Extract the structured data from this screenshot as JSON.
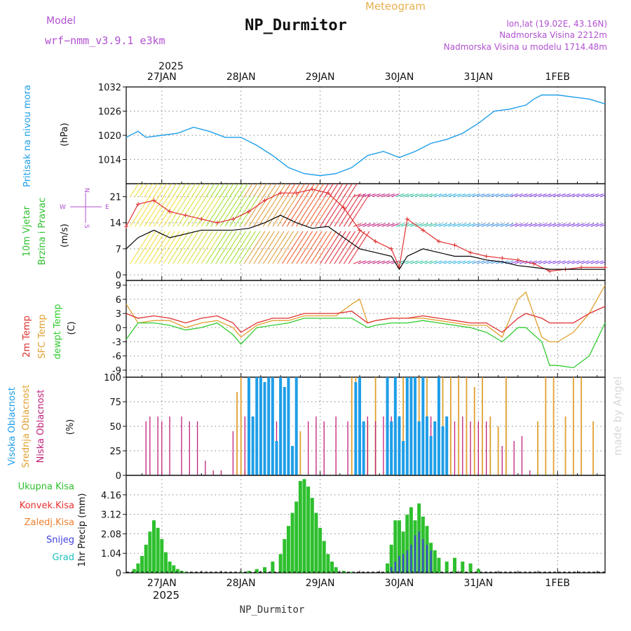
{
  "header": {
    "model_label": "Model",
    "model_name": "wrf−nmm_v3.9.1  e3km",
    "title": "NP_Durmitor",
    "subtitle": "Meteogram",
    "coords": "lon,lat (19.02E, 43.16N)",
    "altitude": "Nadmorska Visina 2212m",
    "model_altitude": "Nadmorska Visina u modelu 1714.48m",
    "footer_station": "NP_Durmitor",
    "watermark": "made by Angel"
  },
  "colors": {
    "pressure": "#1e9ee8",
    "temp2m": "#e03030",
    "sfc": "#e0a030",
    "dewpt": "#30cc30",
    "high_cloud": "#1e9ee8",
    "mid_cloud": "#e0a030",
    "low_cloud": "#c0207a",
    "precip_total": "#2ec02e",
    "convective": "#e83030",
    "freezing": "#f08030",
    "snow": "#4040e0",
    "hail": "#20c0c0",
    "grid": "#9a9a9a",
    "header_purple": "#b050d0",
    "subtitle_color": "#e8b050"
  },
  "time_axis": {
    "year": "2025",
    "day_labels": [
      "27JAN",
      "28JAN",
      "29JAN",
      "30JAN",
      "31JAN",
      "1FEB"
    ],
    "start_day": 26.55,
    "end_day": 32.6,
    "day_ticks": [
      27,
      28,
      29,
      30,
      31,
      32
    ]
  },
  "chart_data": [
    {
      "type": "line",
      "name": "pressure",
      "ylabel": "Pritisak na nivou mora",
      "units": "(hPa)",
      "ylim": [
        1008,
        1032
      ],
      "yticks": [
        1014,
        1020,
        1026,
        1032
      ],
      "series": [
        {
          "name": "MSLP",
          "x": [
            26.55,
            26.7,
            26.8,
            27.0,
            27.2,
            27.4,
            27.6,
            27.8,
            28.0,
            28.2,
            28.4,
            28.6,
            28.8,
            29.0,
            29.2,
            29.4,
            29.6,
            29.8,
            30.0,
            30.2,
            30.4,
            30.6,
            30.8,
            31.0,
            31.2,
            31.4,
            31.6,
            31.7,
            31.8,
            32.0,
            32.2,
            32.4,
            32.6
          ],
          "values": [
            1019.5,
            1021,
            1019.5,
            1020,
            1020.5,
            1022,
            1021,
            1019.5,
            1019.5,
            1017.5,
            1015,
            1012,
            1010.5,
            1010,
            1010.5,
            1012,
            1015,
            1016,
            1014.5,
            1016,
            1018,
            1019,
            1020.5,
            1023,
            1026,
            1026.5,
            1027.5,
            1029,
            1030,
            1030,
            1029.5,
            1029,
            1027.8
          ]
        }
      ]
    },
    {
      "type": "line",
      "name": "wind",
      "ylabel": "10m Vjetar Brzina i Pravac",
      "units": "(m/s)",
      "ylim": [
        -1.5,
        24.5
      ],
      "yticks": [
        0,
        7,
        14,
        21
      ],
      "legend_dirs": [
        "N",
        "W",
        "E",
        "S"
      ],
      "series": [
        {
          "name": "speed",
          "x": [
            26.55,
            26.7,
            26.9,
            27.1,
            27.3,
            27.5,
            27.7,
            27.9,
            28.1,
            28.3,
            28.5,
            28.7,
            28.9,
            29.1,
            29.3,
            29.5,
            29.7,
            29.9,
            30.0,
            30.1,
            30.3,
            30.5,
            30.7,
            30.9,
            31.1,
            31.3,
            31.5,
            31.7,
            31.9,
            32.1,
            32.3,
            32.6
          ],
          "values": [
            7,
            10,
            12,
            10,
            11,
            12,
            12,
            12,
            12.5,
            14,
            16,
            14,
            12.5,
            13,
            10,
            7,
            6,
            5,
            1.5,
            5,
            7,
            6,
            5,
            5,
            4,
            3.5,
            2.5,
            2,
            1.5,
            1.5,
            1.5,
            1.5
          ]
        },
        {
          "name": "gust",
          "x": [
            26.55,
            26.7,
            26.9,
            27.1,
            27.3,
            27.5,
            27.7,
            27.9,
            28.1,
            28.3,
            28.5,
            28.7,
            28.9,
            29.1,
            29.3,
            29.5,
            29.7,
            29.9,
            30.0,
            30.1,
            30.3,
            30.5,
            30.7,
            30.9,
            31.1,
            31.3,
            31.5,
            31.7,
            31.9,
            32.1,
            32.3,
            32.6
          ],
          "values": [
            13,
            19,
            20,
            17,
            16,
            15,
            14,
            15,
            17,
            20,
            22,
            22,
            23,
            22,
            18,
            12,
            9,
            7,
            2,
            15,
            12,
            9,
            8,
            6,
            5,
            4.5,
            4,
            3,
            1,
            1.5,
            2,
            2
          ]
        }
      ]
    },
    {
      "type": "line",
      "name": "temperature",
      "ylabel": "2m Temp / SFC Temp / dewpt Temp",
      "units": "(C)",
      "ylim": [
        -10.5,
        10
      ],
      "yticks": [
        -9,
        -6,
        -3,
        0,
        3,
        6,
        9
      ],
      "series": [
        {
          "name": "2m Temp",
          "x": [
            26.55,
            26.7,
            26.9,
            27.1,
            27.3,
            27.5,
            27.7,
            27.9,
            28.0,
            28.2,
            28.4,
            28.6,
            28.8,
            29.0,
            29.2,
            29.4,
            29.6,
            29.7,
            29.9,
            30.1,
            30.3,
            30.5,
            30.7,
            30.9,
            31.1,
            31.3,
            31.5,
            31.6,
            31.8,
            31.9,
            32.0,
            32.2,
            32.4,
            32.6
          ],
          "values": [
            3,
            2,
            2.5,
            2,
            1,
            2,
            2.5,
            1,
            -1,
            1,
            2,
            2,
            3,
            3,
            3,
            3.5,
            1,
            1.5,
            2,
            2,
            2.5,
            2,
            1.5,
            1,
            1,
            -1,
            2,
            3,
            2,
            1,
            1,
            1,
            3,
            4.5
          ]
        },
        {
          "name": "SFC Temp",
          "x": [
            26.55,
            26.7,
            26.9,
            27.1,
            27.3,
            27.5,
            27.7,
            27.9,
            28.0,
            28.2,
            28.4,
            28.6,
            28.8,
            29.0,
            29.2,
            29.4,
            29.5,
            29.6,
            29.7,
            29.9,
            30.1,
            30.3,
            30.5,
            30.7,
            30.9,
            31.1,
            31.3,
            31.5,
            31.6,
            31.8,
            31.9,
            32.0,
            32.2,
            32.4,
            32.6
          ],
          "values": [
            5,
            1,
            1.5,
            1.5,
            0,
            1,
            1.5,
            0,
            -2,
            0.5,
            1.5,
            1.5,
            2.5,
            2.5,
            2.5,
            5,
            6,
            1,
            1.5,
            2,
            2,
            2,
            1.5,
            1,
            0.5,
            0.5,
            -2,
            6,
            7.5,
            -2,
            -3,
            -3,
            -1,
            3,
            9
          ]
        },
        {
          "name": "dewpt Temp",
          "x": [
            26.55,
            26.7,
            26.9,
            27.1,
            27.3,
            27.5,
            27.7,
            27.9,
            28.0,
            28.2,
            28.4,
            28.6,
            28.8,
            29.0,
            29.2,
            29.4,
            29.6,
            29.7,
            29.9,
            30.1,
            30.3,
            30.5,
            30.7,
            30.9,
            31.1,
            31.3,
            31.5,
            31.6,
            31.8,
            31.9,
            32.0,
            32.2,
            32.4,
            32.6
          ],
          "values": [
            -2.5,
            1,
            1,
            0.5,
            -0.5,
            0,
            1,
            -1.5,
            -3.5,
            0,
            0.5,
            1,
            2,
            2,
            2,
            2,
            0,
            0.5,
            1,
            1,
            1.5,
            1,
            0.5,
            0,
            -1,
            -3,
            0,
            0,
            -3,
            -8,
            -8,
            -8.5,
            -6,
            1
          ]
        }
      ]
    },
    {
      "type": "bar",
      "name": "cloud cover",
      "ylabel": "Visoka / Srednja / Niska Oblacnost",
      "units": "(%)",
      "ylim": [
        0,
        100
      ],
      "yticks": [
        0,
        25,
        50,
        75,
        100
      ],
      "series": [
        {
          "name": "Niska Oblacnost",
          "x": [
            26.8,
            26.85,
            26.95,
            27.0,
            27.1,
            27.25,
            27.35,
            27.45,
            27.55,
            27.65,
            27.75,
            27.9,
            28.05,
            28.15,
            28.25,
            28.35,
            28.45,
            28.55,
            28.7,
            28.85,
            28.95,
            29.05,
            29.2,
            29.35,
            29.6,
            29.7,
            29.8,
            29.9,
            30.0,
            30.1,
            30.2,
            30.3,
            30.4,
            30.5,
            30.6,
            30.7,
            30.8,
            30.9,
            31.0,
            31.1,
            31.3,
            31.45,
            31.55,
            31.65
          ],
          "values": [
            55,
            60,
            60,
            55,
            60,
            60,
            55,
            55,
            15,
            5,
            5,
            45,
            60,
            55,
            50,
            60,
            55,
            55,
            60,
            55,
            60,
            55,
            60,
            55,
            60,
            55,
            60,
            60,
            60,
            55,
            55,
            55,
            60,
            55,
            60,
            55,
            60,
            55,
            55,
            55,
            30,
            35,
            40,
            5
          ]
        },
        {
          "name": "Srednja Oblacnost",
          "x": [
            27.95,
            28.0,
            28.05,
            28.1,
            28.2,
            28.35,
            28.5,
            28.6,
            28.75,
            29.4,
            29.45,
            29.5,
            29.6,
            29.7,
            29.85,
            29.95,
            30.05,
            30.15,
            30.25,
            30.35,
            30.45,
            30.55,
            30.65,
            30.75,
            30.85,
            30.95,
            31.05,
            31.15,
            31.25,
            31.35,
            31.75,
            31.85,
            31.95,
            32.1,
            32.2,
            32.3,
            32.45
          ],
          "values": [
            85,
            100,
            5,
            100,
            100,
            100,
            100,
            55,
            45,
            100,
            100,
            100,
            55,
            100,
            100,
            100,
            100,
            100,
            100,
            100,
            55,
            100,
            100,
            100,
            100,
            90,
            100,
            60,
            50,
            100,
            55,
            100,
            100,
            60,
            100,
            100,
            55
          ]
        },
        {
          "name": "Visoka Oblacnost",
          "x": [
            28.1,
            28.15,
            28.2,
            28.25,
            28.3,
            28.35,
            28.4,
            28.45,
            28.5,
            28.55,
            28.6,
            28.65,
            28.7,
            29.45,
            29.5,
            29.55,
            29.85,
            29.9,
            29.95,
            30.0,
            30.05,
            30.1,
            30.15,
            30.2,
            30.25,
            30.3,
            30.35,
            30.4,
            30.45,
            30.5,
            30.55,
            30.6
          ],
          "values": [
            100,
            60,
            100,
            100,
            95,
            100,
            100,
            35,
            100,
            90,
            100,
            30,
            100,
            95,
            100,
            55,
            100,
            55,
            100,
            60,
            35,
            100,
            100,
            100,
            55,
            100,
            60,
            40,
            55,
            100,
            50,
            60
          ]
        }
      ]
    },
    {
      "type": "bar",
      "name": "precipitation",
      "ylabel": "1hr Precip (mm)",
      "units": "(mm)",
      "ylim": [
        0,
        5.2
      ],
      "yticks": [
        0,
        1.04,
        2.08,
        3.12,
        4.16
      ],
      "legend": [
        "Ukupna Kisa",
        "Konvek.Kisa",
        "Zaledj.Kisa",
        "Snijeg",
        "Grad"
      ],
      "series": [
        {
          "name": "Ukupna Kisa",
          "x": [
            26.65,
            26.7,
            26.75,
            26.8,
            26.85,
            26.9,
            26.95,
            27.0,
            27.05,
            27.1,
            27.15,
            27.2,
            27.25,
            27.3,
            28.0,
            28.1,
            28.2,
            28.3,
            28.4,
            28.5,
            28.55,
            28.6,
            28.65,
            28.7,
            28.75,
            28.8,
            28.85,
            28.9,
            28.95,
            29.0,
            29.05,
            29.1,
            29.15,
            29.2,
            29.3,
            29.4,
            29.85,
            29.9,
            29.95,
            30.0,
            30.05,
            30.1,
            30.15,
            30.2,
            30.25,
            30.3,
            30.35,
            30.4,
            30.45,
            30.5,
            30.6,
            30.7,
            30.8,
            30.9,
            31.0
          ],
          "values": [
            0.2,
            0.5,
            0.9,
            1.5,
            2.2,
            2.8,
            2.4,
            1.8,
            1.1,
            0.6,
            0.4,
            0.2,
            0.1,
            0.05,
            0.05,
            0.1,
            0.2,
            0.3,
            0.6,
            1.0,
            1.8,
            2.5,
            3.2,
            3.8,
            4.9,
            5.0,
            4.6,
            4.0,
            3.2,
            2.4,
            1.7,
            1.0,
            0.6,
            0.3,
            0.1,
            0.05,
            0.5,
            1.5,
            2.8,
            2.8,
            2.2,
            3.1,
            3.5,
            2.8,
            3.7,
            3.0,
            2.5,
            1.6,
            1.2,
            0.8,
            0.6,
            0.8,
            0.6,
            0.5,
            0.2
          ]
        },
        {
          "name": "Snijeg",
          "x": [
            29.9,
            29.95,
            30.0,
            30.05,
            30.1,
            30.15,
            30.2,
            30.25,
            30.3,
            30.35,
            30.4
          ],
          "values": [
            0.3,
            0.6,
            0.9,
            1.0,
            1.2,
            1.5,
            2.0,
            2.2,
            1.8,
            1.5,
            1.2
          ]
        }
      ]
    }
  ]
}
